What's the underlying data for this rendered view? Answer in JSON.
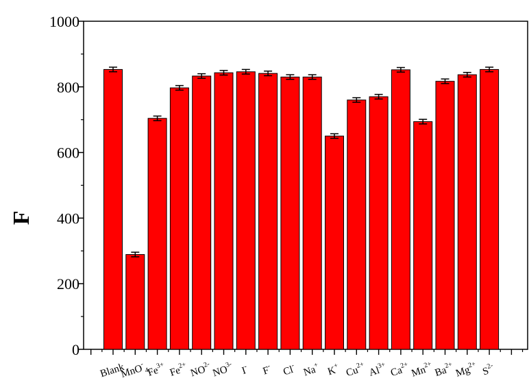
{
  "chart_data": {
    "type": "bar",
    "title": "",
    "xlabel": "",
    "ylabel": "F",
    "ylim": [
      0,
      1000
    ],
    "yticks": [
      0,
      200,
      400,
      600,
      800,
      1000
    ],
    "grid": false,
    "legend": "none",
    "bar_color": "#ff0000",
    "categories": [
      {
        "base": "Blank",
        "sup": "",
        "sub": ""
      },
      {
        "base": "MnO",
        "sup": "-",
        "sub": "4"
      },
      {
        "base": "Fe",
        "sup": "3+",
        "sub": ""
      },
      {
        "base": "Fe",
        "sup": "2+",
        "sub": ""
      },
      {
        "base": "NO",
        "sup": "2-",
        "sub": ""
      },
      {
        "base": "NO",
        "sup": "3-",
        "sub": ""
      },
      {
        "base": "I",
        "sup": "-",
        "sub": ""
      },
      {
        "base": "F",
        "sup": "-",
        "sub": ""
      },
      {
        "base": "Cl",
        "sup": "-",
        "sub": ""
      },
      {
        "base": "Na",
        "sup": "+",
        "sub": ""
      },
      {
        "base": "K",
        "sup": "+",
        "sub": ""
      },
      {
        "base": "Cu",
        "sup": "2+",
        "sub": ""
      },
      {
        "base": "Al",
        "sup": "3+",
        "sub": ""
      },
      {
        "base": "Ca",
        "sup": "2+",
        "sub": ""
      },
      {
        "base": "Mn",
        "sup": "2+",
        "sub": ""
      },
      {
        "base": "Ba",
        "sup": "2+",
        "sub": ""
      },
      {
        "base": "Mg",
        "sup": "2+",
        "sub": ""
      },
      {
        "base": "S",
        "sup": "2-",
        "sub": ""
      }
    ],
    "values": [
      853,
      289,
      704,
      797,
      833,
      843,
      846,
      841,
      830,
      830,
      650,
      760,
      770,
      852,
      694,
      817,
      837,
      853
    ],
    "errors": [
      7,
      7,
      7,
      7,
      7,
      7,
      7,
      7,
      7,
      7,
      7,
      7,
      7,
      7,
      7,
      7,
      7,
      7
    ]
  }
}
